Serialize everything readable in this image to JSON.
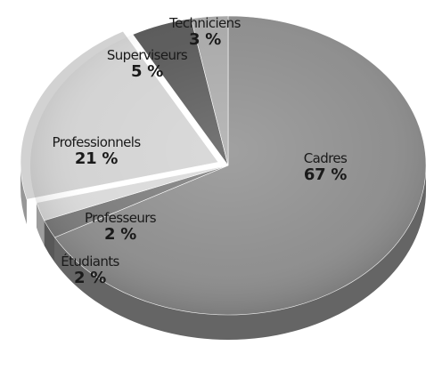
{
  "chart_data": {
    "type": "pie",
    "style": "3d",
    "title": "",
    "legend": "none",
    "slices": [
      {
        "name": "Cadres",
        "value": 67,
        "label": "67 %"
      },
      {
        "name": "Étudiants",
        "value": 2,
        "label": "2 %"
      },
      {
        "name": "Professeurs",
        "value": 2,
        "label": "2 %"
      },
      {
        "name": "Professionnels",
        "value": 21,
        "label": "21 %"
      },
      {
        "name": "Superviseurs",
        "value": 5,
        "label": "5 %"
      },
      {
        "name": "Techniciens",
        "value": 3,
        "label": "3 %"
      }
    ],
    "colors": {
      "Cadres": "#8c8c8c",
      "Étudiants": "#7a7a7a",
      "Professeurs": "#d9d9d9",
      "Professionnels": "#d2d2d2",
      "Superviseurs": "#575757",
      "Techniciens": "#a8a8a8"
    }
  }
}
